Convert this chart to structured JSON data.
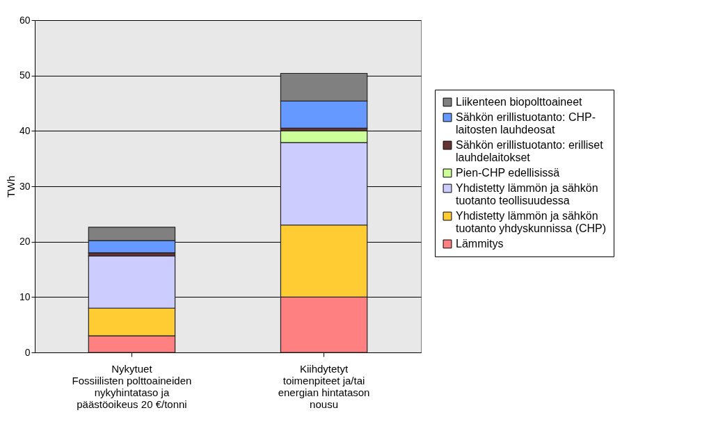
{
  "chart_data": {
    "type": "bar",
    "stacked": true,
    "ylabel": "TWh",
    "categories": [
      "Nykytuet\nFossiilisten polttoaineiden\nnykyhintataso ja\npäästöoikeus 20 €/tonni",
      "Kiihdytetyt\ntoimenpiteet ja/tai\nenergian hintatason\nnousu"
    ],
    "series": [
      {
        "name": "Lämmitys",
        "color": "#ff8080",
        "values": [
          3,
          10
        ]
      },
      {
        "name": "Yhdistetty lämmön ja sähkön tuotanto yhdyskunnissa (CHP)",
        "color": "#ffcc33",
        "values": [
          5,
          13
        ]
      },
      {
        "name": "Yhdistetty lämmön ja sähkön tuotanto teollisuudessa",
        "color": "#ccccff",
        "values": [
          9.4,
          14.9
        ]
      },
      {
        "name": "Pien-CHP edellisissä",
        "color": "#ccff99",
        "values": [
          0,
          2.1
        ]
      },
      {
        "name": "Sähkön erillistuotanto: erilliset lauhdelaitokset",
        "color": "#663333",
        "values": [
          0.6,
          0.5
        ]
      },
      {
        "name": "Sähkön erillistuotanto: CHP-laitosten lauhdeosat",
        "color": "#6699ff",
        "values": [
          2.2,
          4.9
        ]
      },
      {
        "name": "Liikenteen biopolttoaineet",
        "color": "#808080",
        "values": [
          2.4,
          5.0
        ]
      }
    ],
    "ylim": [
      0,
      60
    ],
    "yticks": [
      0,
      10,
      20,
      30,
      40,
      50,
      60
    ],
    "grid": "y",
    "legend": "right"
  }
}
